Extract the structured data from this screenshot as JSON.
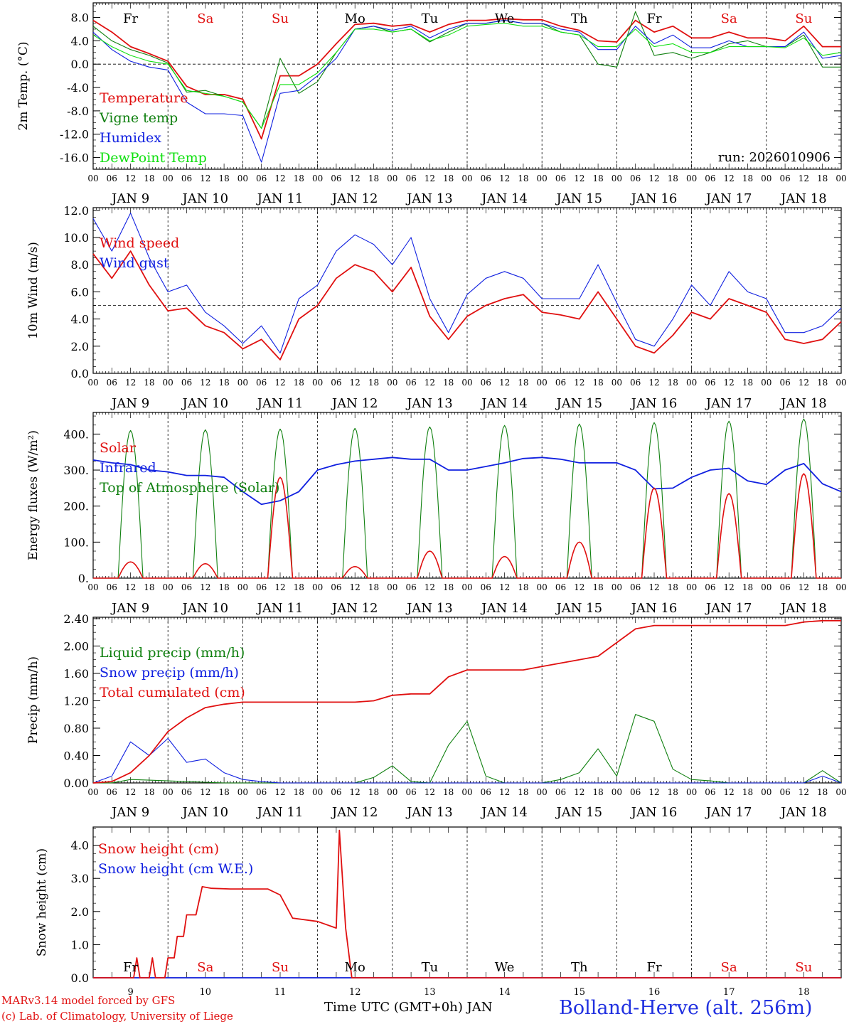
{
  "chart_data": [
    {
      "type": "line",
      "ylabel": "2m Temp. (°C)",
      "ylim": [
        -18,
        10.5
      ],
      "yticks": [
        8.0,
        4.0,
        0.0,
        -4.0,
        -8.0,
        -12.0,
        -16.0
      ],
      "ytick_labels": [
        "8.0",
        "4.0",
        "0.0",
        "-4.0",
        "-8.0",
        "-12.0",
        "-16.0"
      ],
      "hline": 0,
      "run_label": "run: 2026010906",
      "day_names": [
        "Fr",
        "Sa",
        "Su",
        "Mo",
        "Tu",
        "We",
        "Th",
        "Fr",
        "Sa",
        "Su"
      ],
      "x_hours": [
        0,
        6,
        12,
        18,
        24,
        30,
        36,
        42,
        48,
        54,
        60,
        66,
        72,
        78,
        84,
        90,
        96,
        102,
        108,
        114,
        120,
        126,
        132,
        138,
        144,
        150,
        156,
        162,
        168,
        174,
        180,
        186,
        192,
        198,
        204,
        210,
        216,
        222,
        228,
        234,
        240
      ],
      "series": [
        {
          "name": "Temperature",
          "color": "#e01010",
          "values": [
            7.5,
            5.5,
            3.0,
            1.8,
            0.5,
            -3.8,
            -5.2,
            -5.2,
            -6.0,
            -12.8,
            -2.0,
            -2.0,
            0.0,
            3.5,
            6.8,
            7.0,
            6.5,
            6.8,
            5.5,
            6.8,
            7.5,
            7.5,
            7.8,
            7.6,
            7.6,
            6.5,
            5.8,
            4.0,
            3.8,
            7.5,
            5.5,
            6.5,
            4.5,
            4.5,
            5.5,
            4.5,
            4.5,
            4.0,
            6.5,
            3.0,
            3.0
          ]
        },
        {
          "name": "Vigne temp",
          "color": "#108010",
          "values": [
            6.5,
            4.0,
            2.5,
            1.5,
            0.2,
            -4.8,
            -4.5,
            -5.5,
            -6.5,
            -11.0,
            1.0,
            -5.0,
            -3.0,
            2.0,
            6.0,
            6.5,
            5.5,
            6.0,
            3.8,
            5.5,
            7.0,
            7.0,
            7.5,
            7.0,
            7.0,
            5.5,
            5.0,
            0.0,
            -0.5,
            9.0,
            1.5,
            2.0,
            1.0,
            2.0,
            3.5,
            4.0,
            3.0,
            3.0,
            5.0,
            -0.5,
            -0.5
          ]
        },
        {
          "name": "Humidex",
          "color": "#1020e0",
          "values": [
            5.5,
            2.5,
            0.5,
            -0.5,
            -1.0,
            -6.5,
            -8.5,
            -8.5,
            -8.8,
            -16.8,
            -5.0,
            -4.5,
            -2.0,
            1.0,
            6.0,
            6.5,
            5.8,
            6.5,
            4.5,
            6.0,
            7.0,
            7.0,
            7.5,
            7.0,
            7.0,
            6.0,
            5.5,
            2.5,
            2.5,
            6.5,
            3.5,
            5.0,
            2.8,
            2.8,
            4.0,
            3.0,
            3.0,
            3.0,
            5.5,
            1.0,
            1.5
          ]
        },
        {
          "name": "DewPoint Temp",
          "color": "#10e010",
          "values": [
            5.0,
            3.0,
            1.5,
            0.5,
            0.0,
            -4.5,
            -5.0,
            -5.5,
            -6.5,
            -11.0,
            -3.5,
            -3.5,
            -1.5,
            2.0,
            6.0,
            6.0,
            5.5,
            6.0,
            4.0,
            5.0,
            6.5,
            6.8,
            7.0,
            6.5,
            6.5,
            5.5,
            5.0,
            3.0,
            3.0,
            6.0,
            3.0,
            3.5,
            2.0,
            2.0,
            3.0,
            3.0,
            3.0,
            2.8,
            4.5,
            1.5,
            2.0
          ]
        }
      ]
    },
    {
      "type": "line",
      "ylabel": "10m Wind (m/s)",
      "ylim": [
        0,
        12.2
      ],
      "yticks": [
        0.0,
        2.0,
        4.0,
        6.0,
        8.0,
        10.0,
        12.0
      ],
      "ytick_labels": [
        "0.0",
        "2.0",
        "4.0",
        "6.0",
        "8.0",
        "10.0",
        "12.0"
      ],
      "hline": 5.0,
      "x_hours": [
        0,
        6,
        12,
        18,
        24,
        30,
        36,
        42,
        48,
        54,
        60,
        66,
        72,
        78,
        84,
        90,
        96,
        102,
        108,
        114,
        120,
        126,
        132,
        138,
        144,
        150,
        156,
        162,
        168,
        174,
        180,
        186,
        192,
        198,
        204,
        210,
        216,
        222,
        228,
        234,
        240
      ],
      "series": [
        {
          "name": "Wind speed",
          "color": "#e01010",
          "values": [
            8.8,
            7.0,
            9.0,
            6.5,
            4.6,
            4.8,
            3.5,
            3.0,
            1.8,
            2.5,
            1.0,
            4.0,
            5.0,
            7.0,
            8.0,
            7.5,
            6.0,
            7.8,
            4.2,
            2.5,
            4.2,
            5.0,
            5.5,
            5.8,
            4.5,
            4.3,
            4.0,
            6.0,
            4.0,
            2.0,
            1.5,
            2.8,
            4.5,
            4.0,
            5.5,
            5.0,
            4.5,
            2.5,
            2.2,
            2.5,
            3.8
          ]
        },
        {
          "name": "Wind gust",
          "color": "#1020e0",
          "values": [
            11.4,
            9.0,
            11.8,
            8.5,
            6.0,
            6.5,
            4.5,
            3.5,
            2.2,
            3.5,
            1.5,
            5.5,
            6.5,
            9.0,
            10.2,
            9.5,
            8.0,
            10.0,
            5.5,
            3.0,
            5.8,
            7.0,
            7.5,
            7.0,
            5.5,
            5.5,
            5.5,
            8.0,
            5.2,
            2.5,
            2.0,
            4.0,
            6.5,
            5.0,
            7.5,
            6.0,
            5.5,
            3.0,
            3.0,
            3.5,
            4.8
          ]
        }
      ]
    },
    {
      "type": "line",
      "ylabel": "Energy fluxes (W/m²)",
      "ylim": [
        0,
        460
      ],
      "yticks": [
        0,
        100,
        200,
        300,
        400
      ],
      "ytick_labels": [
        "0.",
        "100.",
        "200.",
        "300.",
        "400."
      ],
      "x_hours": [
        0,
        6,
        12,
        18,
        24,
        30,
        36,
        42,
        48,
        54,
        60,
        66,
        72,
        78,
        84,
        90,
        96,
        102,
        108,
        114,
        120,
        126,
        132,
        138,
        144,
        150,
        156,
        162,
        168,
        174,
        180,
        186,
        192,
        198,
        204,
        210,
        216,
        222,
        228,
        234,
        240
      ],
      "series": [
        {
          "name": "Solar",
          "color": "#e01010",
          "peaks": [
            45,
            40,
            280,
            32,
            75,
            60,
            100,
            250,
            235,
            290
          ]
        },
        {
          "name": "Infrared",
          "color": "#1020e0",
          "values": [
            328,
            320,
            315,
            300,
            295,
            285,
            285,
            280,
            240,
            205,
            215,
            240,
            300,
            315,
            325,
            330,
            335,
            330,
            330,
            300,
            300,
            310,
            320,
            332,
            335,
            330,
            320,
            320,
            320,
            300,
            248,
            250,
            280,
            300,
            305,
            270,
            260,
            300,
            318,
            262,
            240
          ]
        },
        {
          "name": "Top of Atmosphere (Solar)",
          "color": "#108010",
          "peaks": [
            410,
            412,
            414,
            416,
            420,
            424,
            428,
            432,
            436,
            442
          ]
        }
      ]
    },
    {
      "type": "line",
      "ylabel": "Precip (mm/h)",
      "ylim": [
        0,
        2.42
      ],
      "yticks": [
        0.0,
        0.4,
        0.8,
        1.2,
        1.6,
        2.0,
        2.4
      ],
      "ytick_labels": [
        "0.00",
        "0.40",
        "0.80",
        "1.20",
        "1.60",
        "2.00",
        "2.40"
      ],
      "x_hours": [
        0,
        6,
        12,
        18,
        24,
        30,
        36,
        42,
        48,
        54,
        60,
        66,
        72,
        78,
        84,
        90,
        96,
        102,
        108,
        114,
        120,
        126,
        132,
        138,
        144,
        150,
        156,
        162,
        168,
        174,
        180,
        186,
        192,
        198,
        204,
        210,
        216,
        222,
        228,
        234,
        240
      ],
      "series": [
        {
          "name": "Liquid precip (mm/h)",
          "color": "#108010",
          "values": [
            0,
            0,
            0.05,
            0.04,
            0.03,
            0.02,
            0.01,
            0,
            0,
            0,
            0,
            0,
            0,
            0,
            0,
            0.08,
            0.25,
            0.02,
            0,
            0.55,
            0.9,
            0.1,
            0,
            0,
            0,
            0.05,
            0.15,
            0.5,
            0.1,
            1.0,
            0.9,
            0.2,
            0.05,
            0.03,
            0,
            0,
            0,
            0,
            0,
            0.18,
            0
          ]
        },
        {
          "name": "Snow precip (mm/h)",
          "color": "#1020e0",
          "values": [
            0,
            0.1,
            0.6,
            0.4,
            0.65,
            0.3,
            0.35,
            0.15,
            0.05,
            0.02,
            0,
            0,
            0,
            0,
            0,
            0,
            0,
            0,
            0,
            0,
            0,
            0,
            0,
            0,
            0,
            0,
            0,
            0,
            0,
            0,
            0,
            0,
            0,
            0,
            0,
            0,
            0,
            0,
            0,
            0.1,
            0
          ]
        },
        {
          "name": "Total cumulated (cm)",
          "color": "#e01010",
          "values": [
            0,
            0.02,
            0.15,
            0.4,
            0.75,
            0.95,
            1.1,
            1.15,
            1.18,
            1.18,
            1.18,
            1.18,
            1.18,
            1.18,
            1.18,
            1.2,
            1.28,
            1.3,
            1.3,
            1.55,
            1.65,
            1.65,
            1.65,
            1.65,
            1.7,
            1.75,
            1.8,
            1.85,
            2.05,
            2.25,
            2.3,
            2.3,
            2.3,
            2.3,
            2.3,
            2.3,
            2.3,
            2.3,
            2.35,
            2.37,
            2.37
          ]
        }
      ]
    },
    {
      "type": "line",
      "ylabel": "Snow height (cm)",
      "ylim": [
        0,
        4.55
      ],
      "yticks": [
        0.0,
        1.0,
        2.0,
        3.0,
        4.0
      ],
      "ytick_labels": [
        "0.0",
        "1.0",
        "2.0",
        "3.0",
        "4.0"
      ],
      "x_day_labels": [
        "9",
        "10",
        "11",
        "12",
        "13",
        "14",
        "15",
        "16",
        "17",
        "18"
      ],
      "day_names": [
        "Fr",
        "Sa",
        "Su",
        "Mo",
        "Tu",
        "We",
        "Th",
        "Fr",
        "Sa",
        "Su"
      ],
      "series": [
        {
          "name": "Snow height (cm)",
          "color": "#e01010",
          "points": [
            [
              0,
              0
            ],
            [
              13,
              0
            ],
            [
              14,
              0.6
            ],
            [
              15,
              0
            ],
            [
              18,
              0
            ],
            [
              19,
              0.6
            ],
            [
              20,
              0
            ],
            [
              23,
              0
            ],
            [
              24,
              0.6
            ],
            [
              26,
              0.6
            ],
            [
              27,
              1.25
            ],
            [
              29,
              1.25
            ],
            [
              30,
              1.9
            ],
            [
              33,
              1.9
            ],
            [
              35,
              2.75
            ],
            [
              38,
              2.7
            ],
            [
              44,
              2.68
            ],
            [
              56,
              2.68
            ],
            [
              60,
              2.5
            ],
            [
              64,
              1.8
            ],
            [
              72,
              1.7
            ],
            [
              78,
              1.5
            ],
            [
              79,
              4.45
            ],
            [
              81,
              1.5
            ],
            [
              83,
              0
            ],
            [
              240,
              0
            ]
          ]
        },
        {
          "name": "Snow height (cm W.E.)",
          "color": "#1020e0",
          "points": [
            [
              0,
              0
            ],
            [
              240,
              0
            ]
          ]
        }
      ]
    }
  ],
  "x_axis": {
    "hour_labels": [
      "00",
      "06",
      "12",
      "18"
    ],
    "end_label": "00",
    "date_labels": [
      "JAN  9",
      "JAN 10",
      "JAN 11",
      "JAN 12",
      "JAN 13",
      "JAN 14",
      "JAN 15",
      "JAN 16",
      "JAN 17",
      "JAN 18"
    ],
    "weekend_days": [
      "Sa",
      "Su"
    ],
    "title": "Time UTC (GMT+0h) JAN"
  },
  "footer": {
    "model": "MARv3.14 model forced by GFS",
    "credit": "(c) Lab. of Climatology, University of Liege",
    "station": "Bolland-Herve (alt. 256m)"
  },
  "colors": {
    "red": "#e01010",
    "green": "#108010",
    "blue": "#1020e0",
    "lightgreen": "#10e010",
    "station": "#2030e0"
  }
}
